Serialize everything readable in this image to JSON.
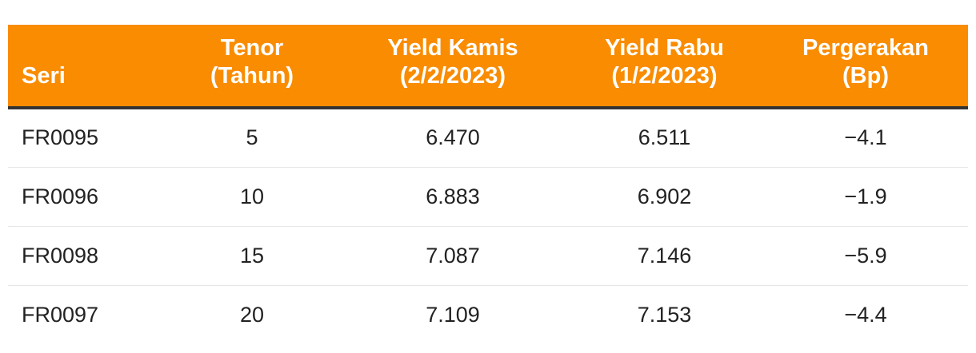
{
  "chart_data": {
    "type": "table",
    "columns": [
      {
        "lines": [
          "Seri"
        ]
      },
      {
        "lines": [
          "Tenor",
          "(Tahun)"
        ]
      },
      {
        "lines": [
          "Yield Kamis",
          "(2/2/2023)"
        ]
      },
      {
        "lines": [
          "Yield Rabu",
          "(1/2/2023)"
        ]
      },
      {
        "lines": [
          "Pergerakan",
          "(Bp)"
        ]
      }
    ],
    "rows": [
      [
        "FR0095",
        "5",
        "6.470",
        "6.511",
        "−4.1"
      ],
      [
        "FR0096",
        "10",
        "6.883",
        "6.902",
        "−1.9"
      ],
      [
        "FR0098",
        "15",
        "7.087",
        "7.146",
        "−5.9"
      ],
      [
        "FR0097",
        "20",
        "7.109",
        "7.153",
        "−4.4"
      ]
    ]
  },
  "colors": {
    "header_bg": "#f98c00",
    "header_text": "#ffffff",
    "header_rule": "#333333",
    "row_rule": "#e6e6e6"
  }
}
